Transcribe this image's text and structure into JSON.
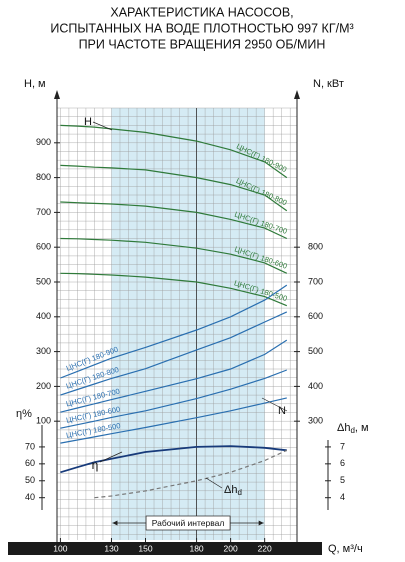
{
  "chart_data": [
    {
      "type": "line",
      "title": [
        "ХАРАКТЕРИСТИКА НАСОСОВ,",
        "ИСПЫТАННЫХ НА ВОДЕ ПЛОТНОСТЬЮ 997 КГ/М³",
        "ПРИ ЧАСТОТЕ ВРАЩЕНИЯ 2950 ОБ/МИН"
      ],
      "x": [
        100,
        110,
        120,
        130,
        150,
        180,
        200,
        220,
        233
      ],
      "xlim": [
        98,
        239
      ],
      "ylabel": "H, м",
      "ylim": [
        0,
        1000
      ],
      "yticks": [
        100,
        200,
        300,
        400,
        500,
        600,
        700,
        800,
        900
      ],
      "y2label": "N, кВт",
      "y2lim": [
        200,
        1200
      ],
      "y2ticks": [
        300,
        400,
        500,
        600,
        700,
        800
      ],
      "grid": true,
      "annotations": [
        "H",
        "N"
      ],
      "series": [
        {
          "name": "ЦНС(Г) 180-900",
          "color": "#2f7a3a",
          "axis": "y",
          "values": [
            950,
            948,
            945,
            940,
            930,
            905,
            880,
            845,
            800
          ]
        },
        {
          "name": "ЦНС(Г) 180-800",
          "color": "#2f7a3a",
          "axis": "y",
          "values": [
            835,
            833,
            830,
            828,
            822,
            800,
            780,
            750,
            705
          ]
        },
        {
          "name": "ЦНС(Г) 180-700",
          "color": "#2f7a3a",
          "axis": "y",
          "values": [
            730,
            728,
            726,
            724,
            718,
            700,
            680,
            655,
            625
          ]
        },
        {
          "name": "ЦНС(Г) 180-600",
          "color": "#2f7a3a",
          "axis": "y",
          "values": [
            625,
            624,
            622,
            620,
            614,
            597,
            580,
            555,
            525
          ]
        },
        {
          "name": "ЦНС(Г) 180-500",
          "color": "#2f7a3a",
          "axis": "y",
          "values": [
            525,
            524,
            522,
            520,
            514,
            500,
            482,
            458,
            432
          ]
        },
        {
          "name": "ЦНС(Г) 180-900",
          "color": "#2a6fb0",
          "axis": "y2",
          "values": [
            424,
            443,
            462,
            481,
            512,
            562,
            600,
            648,
            691
          ]
        },
        {
          "name": "ЦНС(Г) 180-800",
          "color": "#2a6fb0",
          "axis": "y2",
          "values": [
            375,
            391,
            407,
            423,
            451,
            505,
            540,
            585,
            614
          ]
        },
        {
          "name": "ЦНС(Г) 180-700",
          "color": "#2a6fb0",
          "axis": "y2",
          "values": [
            326,
            338,
            350,
            362,
            386,
            422,
            450,
            492,
            533
          ]
        },
        {
          "name": "ЦНС(Г) 180-600",
          "color": "#2a6fb0",
          "axis": "y2",
          "values": [
            280,
            290,
            300,
            311,
            330,
            365,
            392,
            423,
            447
          ]
        },
        {
          "name": "ЦНС(Г) 180-500",
          "color": "#2a6fb0",
          "axis": "y2",
          "values": [
            237,
            246,
            255,
            264,
            282,
            310,
            330,
            352,
            367
          ]
        }
      ]
    },
    {
      "type": "line",
      "x": [
        100,
        110,
        120,
        130,
        150,
        180,
        200,
        220,
        233
      ],
      "xlim": [
        98,
        239
      ],
      "xticks": [
        100,
        130,
        150,
        180,
        200,
        220
      ],
      "xlabel": "Q, м³/ч",
      "ylabel": "η%",
      "ylim": [
        15,
        80
      ],
      "yticks": [
        40,
        50,
        60,
        70
      ],
      "y2label": [
        "Δh",
        "d",
        ", м"
      ],
      "y2lim": [
        1.5,
        8
      ],
      "y2ticks": [
        4,
        5,
        6,
        7
      ],
      "span": {
        "range": [
          130,
          220
        ],
        "label": "Рабочий интервал",
        "color": "#d5ebf4"
      },
      "vline": 180,
      "series": [
        {
          "name": "η",
          "color": "#173a7a",
          "axis": "y",
          "values": [
            55,
            58,
            61,
            63,
            67,
            70,
            70.5,
            69.5,
            68
          ]
        },
        {
          "name": "Δh",
          "name_sub": "d",
          "color": "#777777",
          "axis": "y2",
          "dashed": true,
          "values": [
            null,
            null,
            4.0,
            4.1,
            4.4,
            5.0,
            5.5,
            6.2,
            6.8
          ]
        }
      ]
    }
  ]
}
